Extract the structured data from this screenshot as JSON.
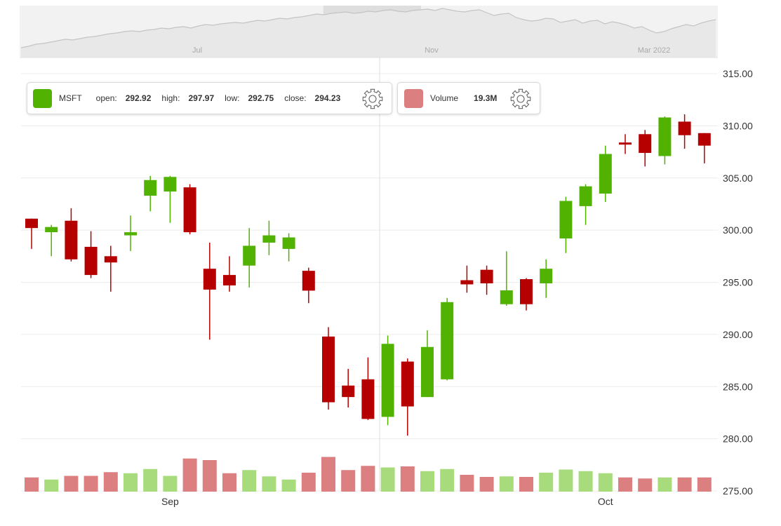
{
  "chart_data": {
    "type": "candlestick",
    "symbol": "MSFT",
    "y_axis": {
      "min": 275,
      "max": 315,
      "ticks": [
        "315.00",
        "310.00",
        "305.00",
        "300.00",
        "295.00",
        "290.00",
        "285.00",
        "280.00",
        "275.00"
      ],
      "position": "right"
    },
    "x_axis": {
      "labels": [
        {
          "text": "Sep",
          "index": 7
        },
        {
          "text": "Oct",
          "index": 29
        }
      ]
    },
    "grid": true,
    "up_color": "#52b202",
    "down_color": "#b60000",
    "volume_up_color": "#a7db7b",
    "volume_down_color": "#db7f80",
    "candles": [
      {
        "open": 301.1,
        "high": 301.1,
        "low": 298.2,
        "close": 300.2
      },
      {
        "open": 299.8,
        "high": 300.5,
        "low": 297.5,
        "close": 300.3
      },
      {
        "open": 300.9,
        "high": 302.1,
        "low": 297.0,
        "close": 297.2
      },
      {
        "open": 298.4,
        "high": 299.9,
        "low": 295.4,
        "close": 295.7
      },
      {
        "open": 297.5,
        "high": 298.5,
        "low": 294.1,
        "close": 296.9
      },
      {
        "open": 299.5,
        "high": 301.4,
        "low": 298.0,
        "close": 299.8
      },
      {
        "open": 303.3,
        "high": 305.2,
        "low": 301.8,
        "close": 304.8
      },
      {
        "open": 303.7,
        "high": 305.2,
        "low": 300.7,
        "close": 305.1
      },
      {
        "open": 304.1,
        "high": 304.4,
        "low": 299.6,
        "close": 299.8
      },
      {
        "open": 296.3,
        "high": 298.8,
        "low": 289.5,
        "close": 294.3
      },
      {
        "open": 295.7,
        "high": 297.5,
        "low": 294.1,
        "close": 294.7
      },
      {
        "open": 296.6,
        "high": 300.2,
        "low": 294.5,
        "close": 298.5
      },
      {
        "open": 298.8,
        "high": 300.9,
        "low": 297.6,
        "close": 299.5
      },
      {
        "open": 298.2,
        "high": 299.7,
        "low": 297.0,
        "close": 299.3
      },
      {
        "open": 296.1,
        "high": 296.4,
        "low": 293.0,
        "close": 294.2
      },
      {
        "open": 289.8,
        "high": 290.7,
        "low": 282.8,
        "close": 283.5
      },
      {
        "open": 285.1,
        "high": 286.7,
        "low": 283.0,
        "close": 284.0
      },
      {
        "open": 285.7,
        "high": 287.8,
        "low": 281.8,
        "close": 281.9
      },
      {
        "open": 282.1,
        "high": 289.9,
        "low": 281.3,
        "close": 289.1
      },
      {
        "open": 287.4,
        "high": 287.7,
        "low": 280.3,
        "close": 283.1
      },
      {
        "open": 284.0,
        "high": 290.4,
        "low": 284.0,
        "close": 288.8
      },
      {
        "open": 285.7,
        "high": 293.5,
        "low": 285.6,
        "close": 293.1
      },
      {
        "open": 295.2,
        "high": 296.6,
        "low": 294.0,
        "close": 294.8
      },
      {
        "open": 296.2,
        "high": 296.6,
        "low": 293.8,
        "close": 294.9
      },
      {
        "open": 292.9,
        "high": 297.97,
        "low": 292.75,
        "close": 294.23
      },
      {
        "open": 295.3,
        "high": 295.4,
        "low": 292.3,
        "close": 292.9
      },
      {
        "open": 294.9,
        "high": 297.2,
        "low": 293.5,
        "close": 296.3
      },
      {
        "open": 299.2,
        "high": 303.2,
        "low": 297.8,
        "close": 302.8
      },
      {
        "open": 302.3,
        "high": 304.4,
        "low": 300.5,
        "close": 304.2
      },
      {
        "open": 303.5,
        "high": 308.1,
        "low": 302.7,
        "close": 307.3
      },
      {
        "open": 308.4,
        "high": 309.2,
        "low": 307.3,
        "close": 308.2
      },
      {
        "open": 309.2,
        "high": 309.6,
        "low": 306.1,
        "close": 307.4
      },
      {
        "open": 307.1,
        "high": 310.9,
        "low": 306.3,
        "close": 310.8
      },
      {
        "open": 310.4,
        "high": 311.1,
        "low": 307.8,
        "close": 309.1
      },
      {
        "open": 309.3,
        "high": 309.3,
        "low": 306.4,
        "close": 308.1
      }
    ],
    "volume_bars_relative": [
      0.27,
      0.23,
      0.3,
      0.3,
      0.37,
      0.35,
      0.43,
      0.3,
      0.63,
      0.6,
      0.35,
      0.41,
      0.29,
      0.23,
      0.36,
      0.66,
      0.41,
      0.49,
      0.46,
      0.48,
      0.39,
      0.43,
      0.32,
      0.28,
      0.29,
      0.28,
      0.36,
      0.42,
      0.39,
      0.35,
      0.27,
      0.25,
      0.27,
      0.27,
      0.27
    ],
    "navigator": {
      "labels": [
        "Jul",
        "Nov",
        "Mar 2022"
      ],
      "selection": [
        0.435,
        0.575
      ]
    }
  },
  "legend": {
    "symbol": "MSFT",
    "open_label": "open:",
    "open_value": "292.92",
    "high_label": "high:",
    "high_value": "297.97",
    "low_label": "low:",
    "low_value": "292.75",
    "close_label": "close:",
    "close_value": "294.23",
    "volume_label": "Volume",
    "volume_value": "19.3M",
    "main_color": "#52b202",
    "volume_color": "#db7f80",
    "settings_icon": "gear-icon"
  }
}
